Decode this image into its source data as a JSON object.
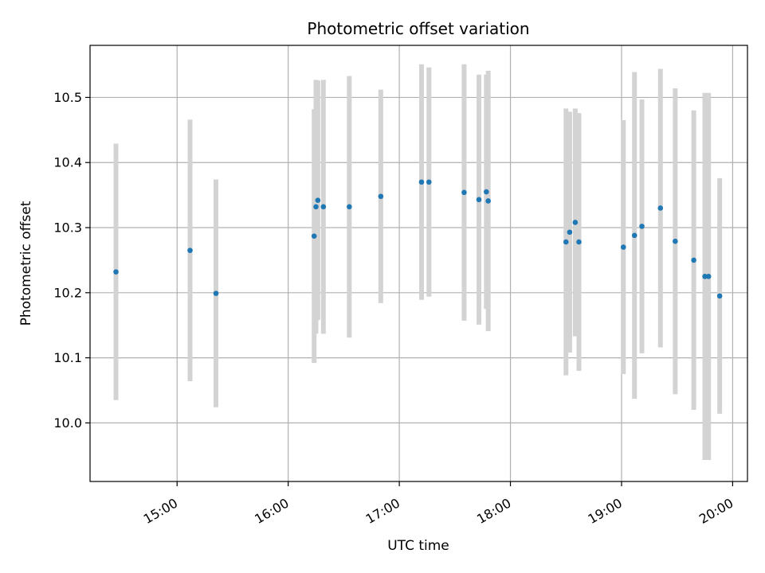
{
  "chart_data": {
    "type": "scatter",
    "title": "Photometric offset variation",
    "xlabel": "UTC time",
    "ylabel": "Photometric offset",
    "x_tick_labels": [
      "15:00",
      "16:00",
      "17:00",
      "18:00",
      "19:00",
      "20:00"
    ],
    "y_tick_labels": [
      "10.0",
      "10.1",
      "10.2",
      "10.3",
      "10.4",
      "10.5"
    ],
    "x_ticks": [
      "15:00",
      "16:00",
      "17:00",
      "18:00",
      "19:00",
      "20:00"
    ],
    "y_ticks": [
      10.0,
      10.1,
      10.2,
      10.3,
      10.4,
      10.5
    ],
    "xlim": [
      "14:13",
      "20:08"
    ],
    "ylim": [
      9.91,
      10.58
    ],
    "grid": true,
    "point_color": "#1f77b4",
    "errorbar_color": "#d3d3d3",
    "points": [
      {
        "x": "14:27",
        "y": 10.232,
        "yerr": 0.197
      },
      {
        "x": "15:07",
        "y": 10.265,
        "yerr": 0.201
      },
      {
        "x": "15:21",
        "y": 10.199,
        "yerr": 0.175
      },
      {
        "x": "16:14",
        "y": 10.287,
        "yerr": 0.195
      },
      {
        "x": "16:15",
        "y": 10.332,
        "yerr": 0.195
      },
      {
        "x": "16:16",
        "y": 10.342,
        "yerr": 0.184
      },
      {
        "x": "16:19",
        "y": 10.332,
        "yerr": 0.195
      },
      {
        "x": "16:33",
        "y": 10.332,
        "yerr": 0.201
      },
      {
        "x": "16:50",
        "y": 10.348,
        "yerr": 0.164
      },
      {
        "x": "17:12",
        "y": 10.37,
        "yerr": 0.181
      },
      {
        "x": "17:16",
        "y": 10.37,
        "yerr": 0.176
      },
      {
        "x": "17:35",
        "y": 10.354,
        "yerr": 0.197
      },
      {
        "x": "17:43",
        "y": 10.343,
        "yerr": 0.192
      },
      {
        "x": "17:47",
        "y": 10.355,
        "yerr": 0.18
      },
      {
        "x": "17:48",
        "y": 10.341,
        "yerr": 0.2
      },
      {
        "x": "18:30",
        "y": 10.278,
        "yerr": 0.205
      },
      {
        "x": "18:32",
        "y": 10.293,
        "yerr": 0.185
      },
      {
        "x": "18:35",
        "y": 10.308,
        "yerr": 0.175
      },
      {
        "x": "18:37",
        "y": 10.278,
        "yerr": 0.198
      },
      {
        "x": "19:01",
        "y": 10.27,
        "yerr": 0.195
      },
      {
        "x": "19:07",
        "y": 10.288,
        "yerr": 0.251
      },
      {
        "x": "19:11",
        "y": 10.302,
        "yerr": 0.195
      },
      {
        "x": "19:21",
        "y": 10.33,
        "yerr": 0.214
      },
      {
        "x": "19:29",
        "y": 10.279,
        "yerr": 0.235
      },
      {
        "x": "19:39",
        "y": 10.25,
        "yerr": 0.23
      },
      {
        "x": "19:45",
        "y": 10.225,
        "yerr": 0.282
      },
      {
        "x": "19:47",
        "y": 10.225,
        "yerr": 0.282
      },
      {
        "x": "19:53",
        "y": 10.195,
        "yerr": 0.181
      }
    ]
  }
}
